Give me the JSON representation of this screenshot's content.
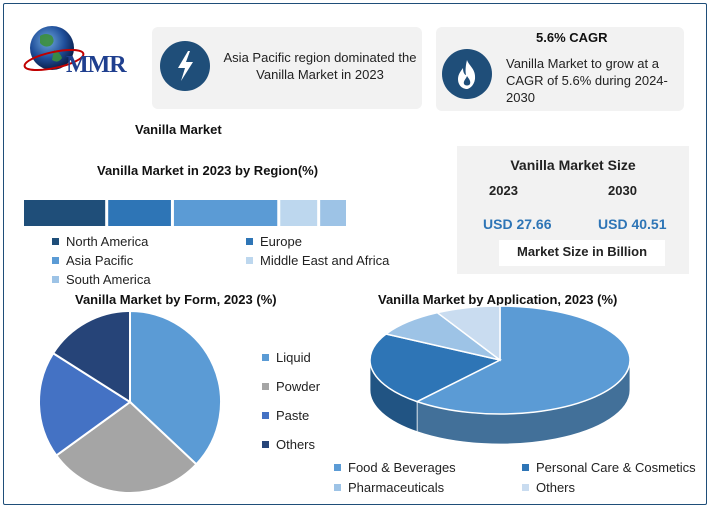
{
  "logo": {
    "text": "MMR"
  },
  "card_left": {
    "text": "Asia Pacific region dominated the Vanilla Market in 2023"
  },
  "card_right": {
    "heading": "5.6% CAGR",
    "text": "Vanilla Market to grow at a CAGR of 5.6% during 2024-2030"
  },
  "market_title": "Vanilla Market",
  "market_size": {
    "title": "Vanilla Market Size",
    "year1": "2023",
    "year2": "2030",
    "value1": "USD 27.66",
    "value2": "USD 40.51",
    "note": "Market Size in Billion"
  },
  "colors": {
    "dark": "#1f4e79",
    "blue": "#2e75b6",
    "mid": "#5b9bd5",
    "light": "#bdd7ee",
    "pale": "#9dc3e6",
    "liquid": "#5b9bd5",
    "powder": "#a5a5a5",
    "paste": "#4472c4",
    "others": "#264478"
  },
  "chart_data": [
    {
      "type": "bar",
      "orientation": "horizontal-stacked",
      "title": "Vanilla Market in 2023 by Region(%)",
      "categories": [
        "North America",
        "Europe",
        "Asia Pacific",
        "Middle East and Africa",
        "South America"
      ],
      "values": [
        22,
        17,
        28,
        10,
        7
      ],
      "colors": [
        "#1f4e79",
        "#2e75b6",
        "#5b9bd5",
        "#bdd7ee",
        "#9dc3e6"
      ]
    },
    {
      "type": "pie",
      "title": "Vanilla Market by Form, 2023  (%)",
      "categories": [
        "Liquid",
        "Powder",
        "Paste",
        "Others"
      ],
      "values": [
        37,
        28,
        19,
        16
      ],
      "colors": [
        "#5b9bd5",
        "#a5a5a5",
        "#4472c4",
        "#264478"
      ]
    },
    {
      "type": "pie",
      "title": "Vanilla Market by Application, 2023  (%)",
      "categories": [
        "Food & Beverages",
        "Personal Care & Cosmetics",
        "Pharmaceuticals",
        "Others"
      ],
      "values": [
        61,
        22,
        9,
        8
      ],
      "colors": [
        "#5b9bd5",
        "#2e75b6",
        "#9dc3e6",
        "#c9dcf0"
      ]
    }
  ]
}
